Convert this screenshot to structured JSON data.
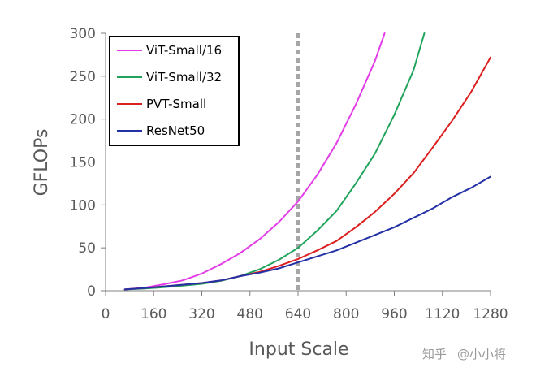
{
  "chart_data": {
    "type": "line",
    "title": "",
    "xlabel": "Input Scale",
    "ylabel": "GFLOPs",
    "xlim": [
      0,
      1280
    ],
    "ylim": [
      0,
      300
    ],
    "xticks": [
      0,
      160,
      320,
      480,
      640,
      800,
      960,
      1120,
      1280
    ],
    "yticks": [
      0,
      50,
      100,
      150,
      200,
      250,
      300
    ],
    "grid": false,
    "legend_position": "top-left",
    "reference_line": {
      "x": 640,
      "style": "dashed",
      "color": "#A6A6A6"
    },
    "series": [
      {
        "name": "ViT-Small/16",
        "color": "#E33DE8",
        "x": [
          64,
          128,
          192,
          256,
          320,
          384,
          448,
          512,
          576,
          640,
          704,
          768,
          832,
          896,
          928
        ],
        "y": [
          1.5,
          3.5,
          7.5,
          12,
          20,
          31,
          44,
          60,
          80,
          104,
          135,
          172,
          217,
          268,
          300
        ]
      },
      {
        "name": "ViT-Small/32",
        "color": "#21A35C",
        "x": [
          64,
          128,
          192,
          256,
          320,
          384,
          448,
          512,
          576,
          640,
          704,
          768,
          832,
          896,
          960,
          1024,
          1060
        ],
        "y": [
          1.5,
          2.5,
          4,
          6,
          8,
          11.5,
          17,
          25,
          36,
          50,
          70,
          93,
          125,
          160,
          205,
          257,
          300
        ]
      },
      {
        "name": "PVT-Small",
        "color": "#DC1F1F",
        "x": [
          64,
          128,
          192,
          256,
          320,
          384,
          448,
          512,
          576,
          640,
          704,
          768,
          832,
          896,
          960,
          1024,
          1088,
          1152,
          1216,
          1280
        ],
        "y": [
          1.5,
          3,
          5,
          7,
          9,
          12,
          17,
          22,
          29,
          37,
          47,
          58,
          74,
          92,
          113,
          137,
          167,
          198,
          232,
          272
        ]
      },
      {
        "name": "ResNet50",
        "color": "#2430A6",
        "x": [
          64,
          128,
          192,
          256,
          320,
          384,
          448,
          512,
          576,
          640,
          704,
          768,
          832,
          896,
          960,
          1024,
          1088,
          1152,
          1216,
          1280
        ],
        "y": [
          1.5,
          3,
          5,
          7,
          9,
          12,
          17,
          21,
          26,
          33,
          40,
          47,
          56,
          65,
          74,
          85,
          96,
          109,
          120,
          133
        ]
      }
    ]
  },
  "watermark": {
    "logo_text": "知乎",
    "handle": "@小小将"
  }
}
